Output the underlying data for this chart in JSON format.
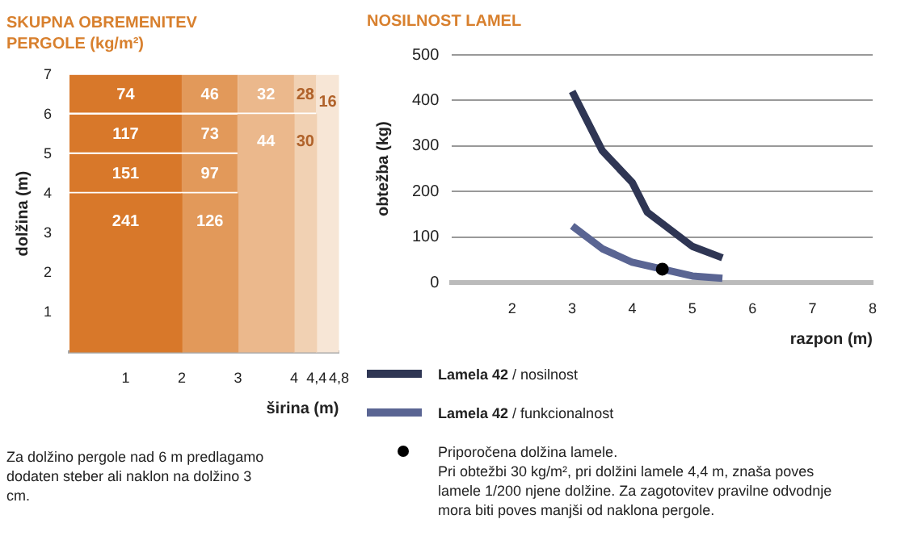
{
  "chart_data": [
    {
      "type": "bar",
      "title": "SKUPNA OBREMENITEV PERGOLE (kg/m²)",
      "xlabel": "širina (m)",
      "ylabel": "dolžina (m)",
      "x": [
        1,
        2.5,
        3.5,
        4.2,
        4.6
      ],
      "stacked": true,
      "annotations": [
        "Za dolžino pergole nad 6 m predlagamo dodaten steber ali naklon na dolžino 3 cm.",
        {
          "text": "241",
          "x": 1,
          "y": 4
        },
        {
          "text": "151",
          "x": 1,
          "y": 5
        },
        {
          "text": "117",
          "x": 1,
          "y": 6
        },
        {
          "text": "74",
          "x": 1,
          "y": 7
        },
        {
          "text": "126",
          "x": 2.5,
          "y": 4
        },
        {
          "text": "97",
          "x": 2.5,
          "y": 5
        },
        {
          "text": "73",
          "x": 2.5,
          "y": 6
        },
        {
          "text": "46",
          "x": 2.5,
          "y": 7
        },
        {
          "text": "44",
          "x": 3.5,
          "y": 6
        },
        {
          "text": "32",
          "x": 3.5,
          "y": 7
        },
        {
          "text": "30",
          "x": 4.2,
          "y": 6
        },
        {
          "text": "28",
          "x": 4.2,
          "y": 7
        },
        {
          "text": "16",
          "x": 4.6,
          "y": 7
        }
      ],
      "series": [
        {
          "colors": [
            "#d8782a",
            "#e2995a",
            "#ebb88c",
            "#f1d1b3",
            "#f7e6d6"
          ],
          "values": [
            4,
            4,
            6,
            6,
            7
          ]
        },
        {
          "colors": [
            "#d8782a",
            "#e2995a",
            "#ebb88c",
            "#f1d1b3",
            null
          ],
          "values": [
            1,
            1,
            1,
            1,
            null
          ]
        },
        {
          "colors": [
            "#d8782a",
            "#e2995a",
            null,
            null,
            null
          ],
          "values": [
            1,
            1,
            null,
            null,
            null
          ]
        },
        {
          "colors": [
            "#d8782a",
            "#e2995a",
            null,
            null,
            null
          ],
          "values": [
            1,
            1,
            null,
            null,
            null
          ]
        }
      ],
      "xlim": [
        0,
        4.8
      ],
      "xticks": [
        1,
        2,
        3,
        4,
        {
          "value": 4.4,
          "label": "4,4"
        },
        {
          "value": 4.8,
          "label": "4,8"
        }
      ],
      "ylim": [
        0,
        7
      ],
      "yticks": [
        1,
        2,
        3,
        4,
        5,
        6,
        7
      ]
    },
    {
      "type": "line",
      "title": "NOSILNOST LAMEL",
      "xlabel": "razpon (m)",
      "ylabel": "obtežba (kg)",
      "series": [
        {
          "name": "Lamela 42 / nosilnost",
          "color": "#2f3654",
          "x": [
            3,
            3.5,
            4,
            4.25,
            4.5,
            5,
            5.5
          ],
          "values": [
            420,
            290,
            220,
            155,
            130,
            80,
            55
          ]
        },
        {
          "name": "Lamela 42 / funkcionalnost",
          "color": "#5a6593",
          "x": [
            3,
            3.5,
            4,
            4.5,
            5,
            5.5
          ],
          "values": [
            125,
            75,
            45,
            30,
            15,
            10
          ]
        },
        {
          "type": "scatter",
          "name": "Priporočena dolžina lamele.",
          "color": "#000000",
          "x": [
            4.5
          ],
          "values": [
            30
          ],
          "marker": "circle"
        }
      ],
      "annotations": [
        "Pri obtežbi 30 kg/m², pri dolžini lamele 4,4 m, znaša poves lamele 1/200 njene dolžine. Za zagotovitev pravilne odvodnje mora biti poves manjši od naklona pergole."
      ],
      "xlim": [
        1,
        8
      ],
      "xticks": [
        2,
        3,
        4,
        5,
        6,
        7,
        8
      ],
      "ylim": [
        0,
        500
      ],
      "yticks": [
        0,
        100,
        200,
        300,
        400,
        500
      ],
      "grid": "y",
      "legend": "bottom",
      "marker": "none"
    }
  ]
}
